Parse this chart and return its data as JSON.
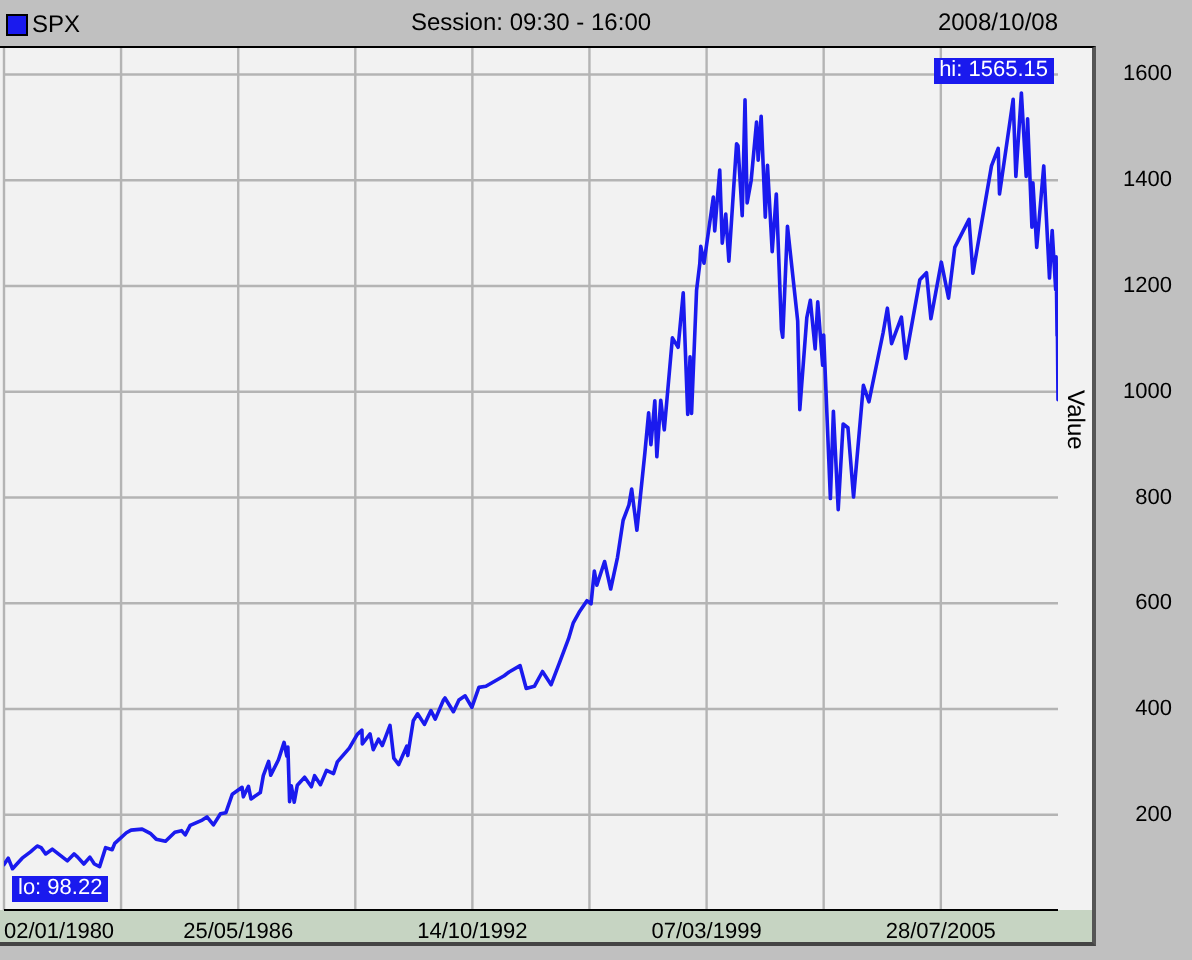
{
  "chart_data": {
    "type": "line",
    "title": "Session: 09:30 - 16:00",
    "subtitle": "2008/10/08",
    "ylabel": "Value",
    "x": [
      "1980-01-02",
      "1980-02-13",
      "1980-03-27",
      "1980-07-01",
      "1980-09-22",
      "1980-11-28",
      "1981-01-06",
      "1981-02-20",
      "1981-04-27",
      "1981-09-25",
      "1981-11-30",
      "1982-01-05",
      "1982-03-08",
      "1982-05-07",
      "1982-06-21",
      "1982-08-12",
      "1982-10-11",
      "1982-12-15",
      "1983-01-10",
      "1983-05-06",
      "1983-06-22",
      "1983-10-10",
      "1983-12-30",
      "1984-02-27",
      "1984-05-30",
      "1984-08-31",
      "1984-11-06",
      "1984-12-13",
      "1985-01-31",
      "1985-05-31",
      "1985-07-17",
      "1985-09-20",
      "1985-11-29",
      "1986-01-22",
      "1986-03-27",
      "1986-07-02",
      "1986-07-15",
      "1986-09-04",
      "1986-09-29",
      "1986-12-31",
      "1987-01-30",
      "1987-03-24",
      "1987-04-14",
      "1987-06-30",
      "1987-08-25",
      "1987-09-21",
      "1987-10-02",
      "1987-10-19",
      "1987-11-05",
      "1987-12-04",
      "1988-01-04",
      "1988-03-17",
      "1988-05-23",
      "1988-06-24",
      "1988-08-22",
      "1988-10-21",
      "1988-12-30",
      "1989-02-06",
      "1989-06-05",
      "1989-08-24",
      "1989-10-09",
      "1989-10-13",
      "1989-12-29",
      "1990-01-30",
      "1990-03-23",
      "1990-04-30",
      "1990-07-16",
      "1990-08-23",
      "1990-10-11",
      "1990-12-31",
      "1991-01-09",
      "1991-03-05",
      "1991-04-17",
      "1991-06-24",
      "1991-08-28",
      "1991-10-10",
      "1991-12-31",
      "1992-01-15",
      "1992-04-08",
      "1992-06-02",
      "1992-08-03",
      "1992-10-09",
      "1992-12-18",
      "1993-02-26",
      "1993-08-27",
      "1993-10-15",
      "1994-02-02",
      "1994-04-04",
      "1994-06-24",
      "1994-09-13",
      "1994-12-08",
      "1995-02-28",
      "1995-05-31",
      "1995-07-17",
      "1995-09-13",
      "1995-11-30",
      "1996-01-10",
      "1996-02-12",
      "1996-03-08",
      "1996-05-24",
      "1996-07-24",
      "1996-09-30",
      "1996-11-25",
      "1997-01-22",
      "1997-02-18",
      "1997-04-11",
      "1997-06-30",
      "1997-08-06",
      "1997-08-29",
      "1997-10-07",
      "1997-10-27",
      "1997-12-05",
      "1998-01-09",
      "1998-03-31",
      "1998-05-27",
      "1998-07-17",
      "1998-08-31",
      "1998-09-23",
      "1998-10-08",
      "1998-11-27",
      "1998-12-29",
      "1999-01-08",
      "1999-02-09",
      "1999-05-13",
      "1999-05-27",
      "1999-07-16",
      "1999-08-10",
      "1999-09-14",
      "1999-10-15",
      "1999-12-31",
      "2000-01-14",
      "2000-02-25",
      "2000-03-24",
      "2000-04-14",
      "2000-05-24",
      "2000-07-17",
      "2000-08-02",
      "2000-09-01",
      "2000-10-12",
      "2000-11-03",
      "2000-12-20",
      "2001-01-30",
      "2001-03-22",
      "2001-04-04",
      "2001-05-21",
      "2001-08-31",
      "2001-09-21",
      "2001-11-30",
      "2002-01-04",
      "2002-02-21",
      "2002-03-19",
      "2002-05-07",
      "2002-05-17",
      "2002-07-23",
      "2002-08-22",
      "2002-10-09",
      "2002-11-27",
      "2003-01-14",
      "2003-03-11",
      "2003-06-17",
      "2003-08-11",
      "2003-12-31",
      "2004-02-11",
      "2004-03-24",
      "2004-06-30",
      "2004-08-12",
      "2004-12-31",
      "2005-03-07",
      "2005-04-20",
      "2005-08-02",
      "2005-10-13",
      "2005-12-14",
      "2006-05-05",
      "2006-06-13",
      "2006-12-15",
      "2007-02-20",
      "2007-03-05",
      "2007-07-19",
      "2007-08-15",
      "2007-10-09",
      "2007-11-26",
      "2007-12-10",
      "2008-01-22",
      "2008-02-01",
      "2008-03-10",
      "2008-05-19",
      "2008-07-15",
      "2008-08-11",
      "2008-09-15",
      "2008-09-19",
      "2008-09-29",
      "2008-09-30",
      "2008-10-08"
    ],
    "series": [
      {
        "name": "SPX",
        "color": "#1a1aee",
        "values": [
          106,
          118,
          98,
          118,
          130,
          141,
          138,
          126,
          135,
          113,
          126,
          120,
          107,
          120,
          107,
          102,
          138,
          134,
          146,
          166,
          171,
          173,
          165,
          154,
          150,
          167,
          170,
          162,
          180,
          190,
          196,
          181,
          202,
          204,
          239,
          252,
          234,
          254,
          230,
          242,
          274,
          301,
          275,
          304,
          337,
          311,
          328,
          225,
          255,
          224,
          256,
          271,
          253,
          274,
          257,
          284,
          278,
          300,
          326,
          352,
          360,
          334,
          353,
          323,
          343,
          331,
          369,
          307,
          295,
          330,
          312,
          378,
          391,
          371,
          397,
          381,
          417,
          421,
          395,
          417,
          425,
          403,
          441,
          443,
          463,
          470,
          482,
          439,
          443,
          471,
          446,
          487,
          533,
          563,
          583,
          605,
          599,
          661,
          634,
          679,
          627,
          687,
          757,
          786,
          816,
          738,
          885,
          960,
          900,
          983,
          877,
          984,
          928,
          1102,
          1084,
          1187,
          957,
          1066,
          959,
          1192,
          1242,
          1275,
          1243,
          1368,
          1304,
          1419,
          1281,
          1336,
          1247,
          1469,
          1465,
          1333,
          1552,
          1357,
          1399,
          1510,
          1438,
          1521,
          1330,
          1428,
          1265,
          1374,
          1118,
          1103,
          1313,
          1134,
          966,
          1140,
          1173,
          1081,
          1170,
          1050,
          1107,
          798,
          963,
          777,
          939,
          932,
          801,
          1012,
          981,
          1112,
          1158,
          1091,
          1141,
          1063,
          1212,
          1225,
          1138,
          1245,
          1177,
          1273,
          1326,
          1224,
          1427,
          1460,
          1374,
          1553,
          1407,
          1565,
          1407,
          1516,
          1311,
          1395,
          1273,
          1427,
          1215,
          1305,
          1193,
          1255,
          1106,
          1166,
          985
        ]
      }
    ],
    "xlim": [
      "1980-01-02",
      "2008-10-08"
    ],
    "xticks": [
      {
        "value": "1980-01-02",
        "label": "02/01/1980"
      },
      {
        "value": "1983-03-14",
        "label": null
      },
      {
        "value": "1986-05-25",
        "label": "25/05/1986"
      },
      {
        "value": "1989-08-04",
        "label": null
      },
      {
        "value": "1992-10-14",
        "label": "14/10/1992"
      },
      {
        "value": "1995-12-25",
        "label": null
      },
      {
        "value": "1999-03-07",
        "label": "07/03/1999"
      },
      {
        "value": "2002-05-17",
        "label": null
      },
      {
        "value": "2005-07-28",
        "label": "28/07/2005"
      }
    ],
    "ylim": [
      20,
      1650
    ],
    "yticks": [
      200,
      400,
      600,
      800,
      1000,
      1200,
      1400,
      1600
    ],
    "grid": true,
    "legend": "top left",
    "marker": "none",
    "line_style": "solid",
    "annotations": [
      {
        "text": "hi: 1565.15",
        "x": "2007-10-09",
        "y": 1565.15
      },
      {
        "text": "lo: 98.22",
        "x": "1980-03-27",
        "y": 98.22
      }
    ]
  }
}
